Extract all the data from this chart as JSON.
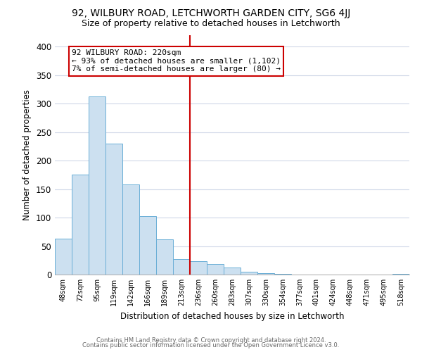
{
  "title": "92, WILBURY ROAD, LETCHWORTH GARDEN CITY, SG6 4JJ",
  "subtitle": "Size of property relative to detached houses in Letchworth",
  "xlabel": "Distribution of detached houses by size in Letchworth",
  "ylabel": "Number of detached properties",
  "bar_labels": [
    "48sqm",
    "72sqm",
    "95sqm",
    "119sqm",
    "142sqm",
    "166sqm",
    "189sqm",
    "213sqm",
    "236sqm",
    "260sqm",
    "283sqm",
    "307sqm",
    "330sqm",
    "354sqm",
    "377sqm",
    "401sqm",
    "424sqm",
    "448sqm",
    "471sqm",
    "495sqm",
    "518sqm"
  ],
  "bar_values": [
    63,
    175,
    313,
    230,
    158,
    103,
    62,
    27,
    24,
    18,
    12,
    5,
    2,
    1,
    0,
    0,
    0,
    0,
    0,
    0,
    1
  ],
  "bar_color": "#cce0f0",
  "bar_edge_color": "#6aaed6",
  "vline_x": 7.5,
  "vline_color": "#cc0000",
  "annotation_line1": "92 WILBURY ROAD: 220sqm",
  "annotation_line2": "← 93% of detached houses are smaller (1,102)",
  "annotation_line3": "7% of semi-detached houses are larger (80) →",
  "annotation_box_color": "#ffffff",
  "annotation_box_edge": "#cc0000",
  "ylim": [
    0,
    420
  ],
  "yticks": [
    0,
    50,
    100,
    150,
    200,
    250,
    300,
    350,
    400
  ],
  "footer_line1": "Contains HM Land Registry data © Crown copyright and database right 2024.",
  "footer_line2": "Contains public sector information licensed under the Open Government Licence v3.0.",
  "background_color": "#ffffff",
  "grid_color": "#d0d8e8"
}
